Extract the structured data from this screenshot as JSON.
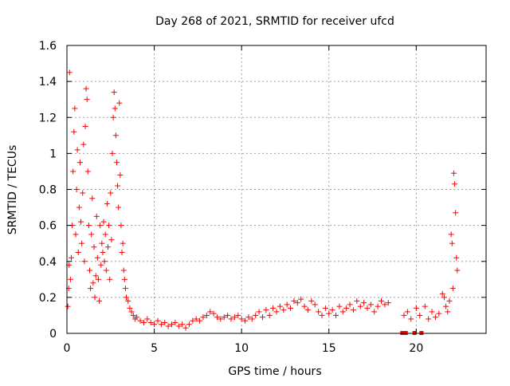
{
  "chart_data": {
    "type": "scatter",
    "title": "Day 268 of 2021, SRMTID for receiver ufcd",
    "xlabel": "GPS time / hours",
    "ylabel": "SRMTID / TECUs",
    "xlim": [
      0,
      24
    ],
    "ylim": [
      0,
      1.6
    ],
    "xticks": [
      0,
      5,
      10,
      15,
      20
    ],
    "xtick_labels": [
      "0",
      "5",
      "10",
      "15",
      "20"
    ],
    "yticks": [
      0,
      0.2,
      0.4,
      0.6,
      0.8,
      1,
      1.2,
      1.4,
      1.6
    ],
    "ytick_labels": [
      "0",
      "0.2",
      "0.4",
      "0.6",
      "0.8",
      "1",
      "1.2",
      "1.4",
      "1.6"
    ],
    "grid": true,
    "marker": "plus",
    "color": "#ff0000",
    "series": [
      {
        "name": "SRMTID",
        "points": [
          [
            0.05,
            0.15
          ],
          [
            0.1,
            0.25
          ],
          [
            0.12,
            0.38
          ],
          [
            0.15,
            1.45
          ],
          [
            0.2,
            0.3
          ],
          [
            0.25,
            0.42
          ],
          [
            0.3,
            0.6
          ],
          [
            0.35,
            0.9
          ],
          [
            0.4,
            1.12
          ],
          [
            0.45,
            1.25
          ],
          [
            0.5,
            0.55
          ],
          [
            0.55,
            0.8
          ],
          [
            0.6,
            1.02
          ],
          [
            0.65,
            0.45
          ],
          [
            0.7,
            0.7
          ],
          [
            0.75,
            0.95
          ],
          [
            0.8,
            0.62
          ],
          [
            0.85,
            0.5
          ],
          [
            0.9,
            0.78
          ],
          [
            0.95,
            1.05
          ],
          [
            1.0,
            0.4
          ],
          [
            1.05,
            1.15
          ],
          [
            1.1,
            1.36
          ],
          [
            1.15,
            1.3
          ],
          [
            1.2,
            0.9
          ],
          [
            1.25,
            0.6
          ],
          [
            1.3,
            0.35
          ],
          [
            1.35,
            0.25
          ],
          [
            1.4,
            0.55
          ],
          [
            1.45,
            0.75
          ],
          [
            1.5,
            0.28
          ],
          [
            1.55,
            0.48
          ],
          [
            1.6,
            0.2
          ],
          [
            1.65,
            0.32
          ],
          [
            1.7,
            0.65
          ],
          [
            1.75,
            0.42
          ],
          [
            1.8,
            0.3
          ],
          [
            1.85,
            0.18
          ],
          [
            1.9,
            0.6
          ],
          [
            1.95,
            0.38
          ],
          [
            2.0,
            0.5
          ],
          [
            2.05,
            0.45
          ],
          [
            2.1,
            0.62
          ],
          [
            2.15,
            0.4
          ],
          [
            2.2,
            0.55
          ],
          [
            2.25,
            0.35
          ],
          [
            2.3,
            0.72
          ],
          [
            2.35,
            0.48
          ],
          [
            2.4,
            0.6
          ],
          [
            2.45,
            0.3
          ],
          [
            2.5,
            0.78
          ],
          [
            2.55,
            0.52
          ],
          [
            2.6,
            1.0
          ],
          [
            2.65,
            1.2
          ],
          [
            2.7,
            1.34
          ],
          [
            2.75,
            1.25
          ],
          [
            2.8,
            1.1
          ],
          [
            2.85,
            0.95
          ],
          [
            2.9,
            0.82
          ],
          [
            2.95,
            0.7
          ],
          [
            3.0,
            1.28
          ],
          [
            3.05,
            0.88
          ],
          [
            3.1,
            0.6
          ],
          [
            3.15,
            0.45
          ],
          [
            3.2,
            0.5
          ],
          [
            3.25,
            0.35
          ],
          [
            3.3,
            0.3
          ],
          [
            3.35,
            0.25
          ],
          [
            3.4,
            0.2
          ],
          [
            3.5,
            0.18
          ],
          [
            3.6,
            0.14
          ],
          [
            3.7,
            0.12
          ],
          [
            3.8,
            0.1
          ],
          [
            3.9,
            0.08
          ],
          [
            4.0,
            0.09
          ],
          [
            4.2,
            0.07
          ],
          [
            4.4,
            0.06
          ],
          [
            4.6,
            0.08
          ],
          [
            4.8,
            0.06
          ],
          [
            5.0,
            0.05
          ],
          [
            5.2,
            0.07
          ],
          [
            5.4,
            0.05
          ],
          [
            5.6,
            0.06
          ],
          [
            5.8,
            0.04
          ],
          [
            6.0,
            0.05
          ],
          [
            6.2,
            0.06
          ],
          [
            6.4,
            0.04
          ],
          [
            6.6,
            0.05
          ],
          [
            6.8,
            0.03
          ],
          [
            7.0,
            0.05
          ],
          [
            7.2,
            0.07
          ],
          [
            7.4,
            0.08
          ],
          [
            7.6,
            0.07
          ],
          [
            7.8,
            0.09
          ],
          [
            8.0,
            0.1
          ],
          [
            8.2,
            0.12
          ],
          [
            8.4,
            0.11
          ],
          [
            8.6,
            0.09
          ],
          [
            8.8,
            0.08
          ],
          [
            9.0,
            0.09
          ],
          [
            9.2,
            0.1
          ],
          [
            9.4,
            0.08
          ],
          [
            9.6,
            0.09
          ],
          [
            9.8,
            0.1
          ],
          [
            10.0,
            0.08
          ],
          [
            10.2,
            0.07
          ],
          [
            10.4,
            0.09
          ],
          [
            10.6,
            0.08
          ],
          [
            10.8,
            0.1
          ],
          [
            11.0,
            0.12
          ],
          [
            11.2,
            0.09
          ],
          [
            11.4,
            0.13
          ],
          [
            11.6,
            0.1
          ],
          [
            11.8,
            0.14
          ],
          [
            12.0,
            0.12
          ],
          [
            12.2,
            0.15
          ],
          [
            12.4,
            0.13
          ],
          [
            12.6,
            0.16
          ],
          [
            12.8,
            0.14
          ],
          [
            13.0,
            0.18
          ],
          [
            13.2,
            0.17
          ],
          [
            13.4,
            0.19
          ],
          [
            13.6,
            0.15
          ],
          [
            13.8,
            0.13
          ],
          [
            14.0,
            0.18
          ],
          [
            14.2,
            0.16
          ],
          [
            14.4,
            0.12
          ],
          [
            14.6,
            0.1
          ],
          [
            14.8,
            0.14
          ],
          [
            15.0,
            0.11
          ],
          [
            15.2,
            0.13
          ],
          [
            15.4,
            0.1
          ],
          [
            15.6,
            0.15
          ],
          [
            15.8,
            0.12
          ],
          [
            16.0,
            0.14
          ],
          [
            16.2,
            0.16
          ],
          [
            16.4,
            0.13
          ],
          [
            16.6,
            0.18
          ],
          [
            16.8,
            0.15
          ],
          [
            17.0,
            0.17
          ],
          [
            17.2,
            0.14
          ],
          [
            17.4,
            0.16
          ],
          [
            17.6,
            0.12
          ],
          [
            17.8,
            0.15
          ],
          [
            18.0,
            0.18
          ],
          [
            18.2,
            0.16
          ],
          [
            18.4,
            0.17
          ],
          [
            19.3,
            0.1
          ],
          [
            19.5,
            0.12
          ],
          [
            19.7,
            0.08
          ],
          [
            20.0,
            0.14
          ],
          [
            20.2,
            0.1
          ],
          [
            20.5,
            0.15
          ],
          [
            20.7,
            0.08
          ],
          [
            20.9,
            0.12
          ],
          [
            21.1,
            0.09
          ],
          [
            21.3,
            0.11
          ],
          [
            21.5,
            0.22
          ],
          [
            21.6,
            0.2
          ],
          [
            21.7,
            0.15
          ],
          [
            21.8,
            0.12
          ],
          [
            21.9,
            0.18
          ],
          [
            22.0,
            0.55
          ],
          [
            22.05,
            0.5
          ],
          [
            22.1,
            0.25
          ],
          [
            22.15,
            0.89
          ],
          [
            22.2,
            0.83
          ],
          [
            22.25,
            0.67
          ],
          [
            22.3,
            0.42
          ],
          [
            22.35,
            0.35
          ]
        ]
      }
    ],
    "zero_markers": [
      19.2,
      19.4,
      19.9,
      20.3
    ],
    "annotations": []
  }
}
